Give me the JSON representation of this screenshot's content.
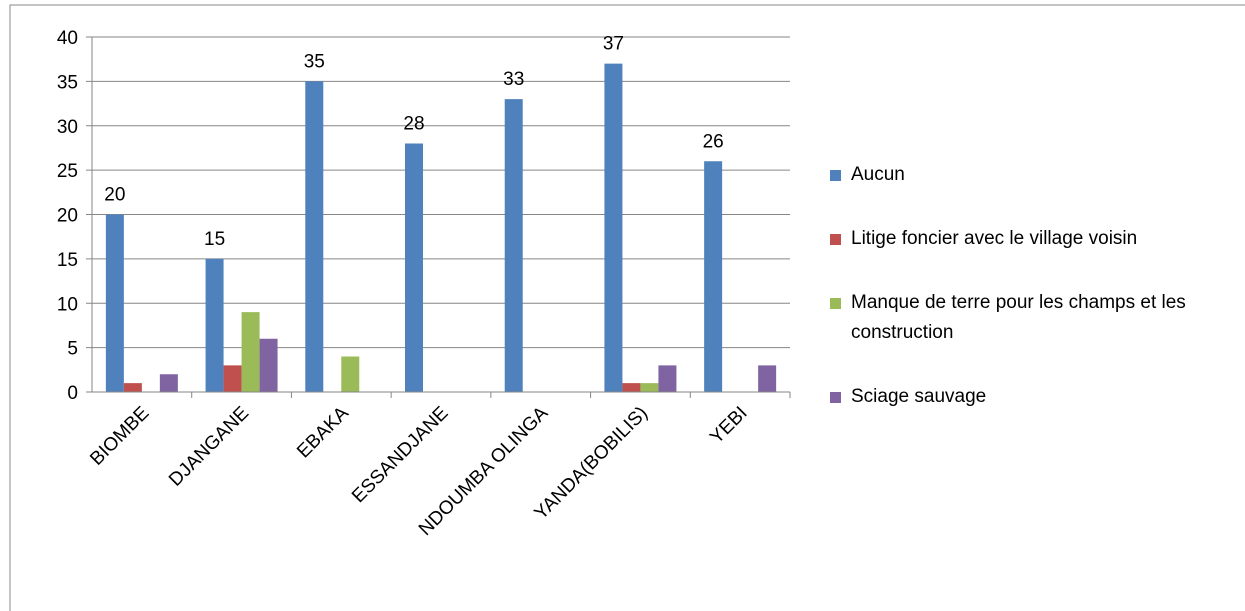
{
  "chart_data": {
    "type": "bar",
    "categories": [
      "BIOMBE",
      "DJANGANE",
      "EBAKA",
      "ESSANDJANE",
      "NDOUMBA OLINGA",
      "YANDA(BOBILIS)",
      "YEBI"
    ],
    "series": [
      {
        "name": "Aucun",
        "color": "#4f81bd",
        "values": [
          20,
          15,
          35,
          28,
          33,
          37,
          26
        ],
        "data_labels": true
      },
      {
        "name": "Litige foncier avec le village voisin",
        "color": "#c0504d",
        "values": [
          1,
          3,
          0,
          0,
          0,
          1,
          0
        ]
      },
      {
        "name": "Manque de terre pour les champs et les construction",
        "color": "#9bbb59",
        "values": [
          0,
          9,
          4,
          0,
          0,
          1,
          0
        ]
      },
      {
        "name": "Sciage sauvage",
        "color": "#8064a2",
        "values": [
          2,
          6,
          0,
          0,
          0,
          3,
          3
        ]
      }
    ],
    "ylim": [
      0,
      40
    ],
    "yticks": [
      0,
      5,
      10,
      15,
      20,
      25,
      30,
      35,
      40
    ],
    "grid": true,
    "legend": "right"
  }
}
